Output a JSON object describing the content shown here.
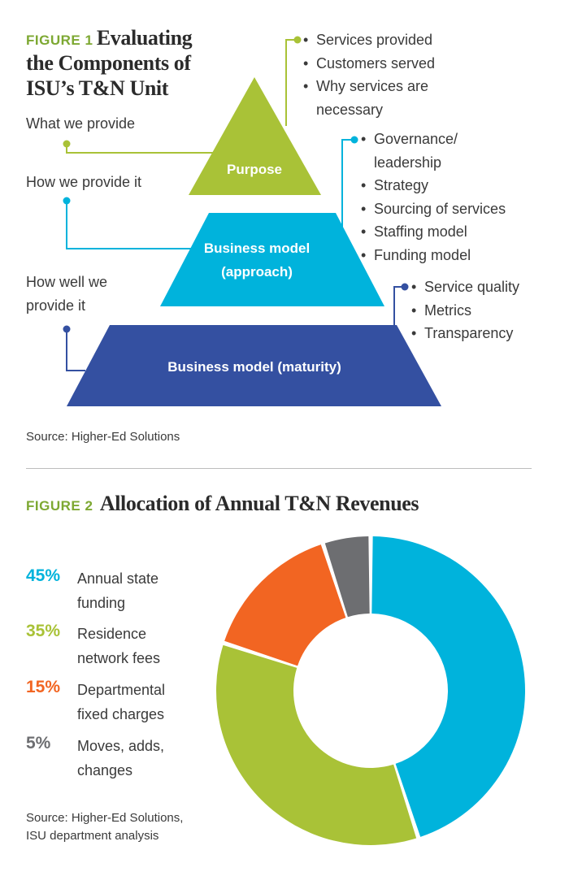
{
  "colors": {
    "green": "#a9c237",
    "cyan": "#00b3dc",
    "navy": "#3450a1",
    "orange": "#f26522",
    "gray": "#6d6e71",
    "divider": "#bdbdbd"
  },
  "figure1": {
    "label": "FIGURE 1",
    "title_line1": "Evaluating",
    "title_line2": "the Components of",
    "title_line3": "ISU’s T&N Unit",
    "tiers": [
      {
        "name": "Purpose",
        "side_label": [
          "What we provide"
        ],
        "bullets": [
          "Services provided",
          "Customers served",
          "Why services are",
          "necessary"
        ]
      },
      {
        "name_line1": "Business model",
        "name_line2": "(approach)",
        "side_label": [
          "How we provide it"
        ],
        "bullets": [
          "Governance/",
          "leadership",
          "Strategy",
          "Sourcing of services",
          "Staffing model",
          "Funding model"
        ]
      },
      {
        "name": "Business model (maturity)",
        "side_label": [
          "How well we",
          "provide it"
        ],
        "bullets": [
          "Service quality",
          "Metrics",
          "Transparency"
        ]
      }
    ],
    "source": "Source: Higher-Ed Solutions"
  },
  "figure2": {
    "label": "FIGURE 2",
    "title": "Allocation of Annual T&N Revenues",
    "source_line1": "Source: Higher-Ed Solutions,",
    "source_line2": "ISU department analysis"
  },
  "chart_data": {
    "type": "pie",
    "title": "Allocation of Annual T&N Revenues",
    "donut": true,
    "categories": [
      "Annual state funding",
      "Residence network fees",
      "Departmental fixed charges",
      "Moves, adds, changes"
    ],
    "values": [
      45,
      35,
      15,
      5
    ],
    "value_labels": [
      "45%",
      "35%",
      "15%",
      "5%"
    ],
    "label_lines": [
      [
        "Annual state",
        "funding"
      ],
      [
        "Residence",
        "network fees"
      ],
      [
        "Departmental",
        "fixed charges"
      ],
      [
        "Moves, adds,",
        "changes"
      ]
    ],
    "colors": [
      "#00b3dc",
      "#a9c237",
      "#f26522",
      "#6d6e71"
    ],
    "legend_position": "left"
  }
}
